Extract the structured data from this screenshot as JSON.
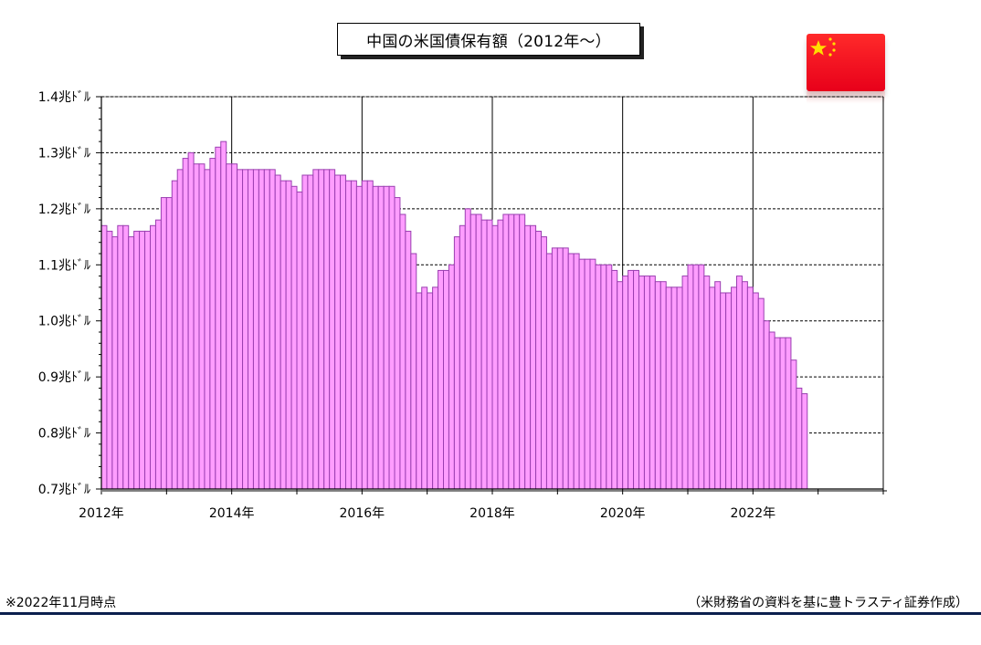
{
  "chart_data": {
    "type": "bar",
    "title": "中国の米国債保有額（2012年～）",
    "ylim": [
      0.7,
      1.4
    ],
    "yticks": [
      {
        "value": 0.7,
        "label": "0.7兆ﾄﾞﾙ"
      },
      {
        "value": 0.8,
        "label": "0.8兆ﾄﾞﾙ"
      },
      {
        "value": 0.9,
        "label": "0.9兆ﾄﾞﾙ"
      },
      {
        "value": 1.0,
        "label": "1.0兆ﾄﾞﾙ"
      },
      {
        "value": 1.1,
        "label": "1.1兆ﾄﾞﾙ"
      },
      {
        "value": 1.2,
        "label": "1.2兆ﾄﾞﾙ"
      },
      {
        "value": 1.3,
        "label": "1.3兆ﾄﾞﾙ"
      },
      {
        "value": 1.4,
        "label": "1.4兆ﾄﾞﾙ"
      }
    ],
    "x_start": "2012-01",
    "x_end": "2023-12",
    "xticks": [
      {
        "month": "2012-01",
        "label": "2012年"
      },
      {
        "month": "2014-01",
        "label": "2014年"
      },
      {
        "month": "2016-01",
        "label": "2016年"
      },
      {
        "month": "2018-01",
        "label": "2018年"
      },
      {
        "month": "2020-01",
        "label": "2020年"
      },
      {
        "month": "2022-01",
        "label": "2022年"
      }
    ],
    "grid": true,
    "series": [
      {
        "start": "2012-01",
        "values": [
          1.17,
          1.16,
          1.15,
          1.17,
          1.17,
          1.15,
          1.16,
          1.16,
          1.16,
          1.17,
          1.18,
          1.22,
          1.22,
          1.25,
          1.27,
          1.29,
          1.3,
          1.28,
          1.28,
          1.27,
          1.29,
          1.31,
          1.32,
          1.28,
          1.28,
          1.27,
          1.27,
          1.27,
          1.27,
          1.27,
          1.27,
          1.27,
          1.26,
          1.25,
          1.25,
          1.24,
          1.23,
          1.26,
          1.26,
          1.27,
          1.27,
          1.27,
          1.27,
          1.26,
          1.26,
          1.25,
          1.25,
          1.24,
          1.25,
          1.25,
          1.24,
          1.24,
          1.24,
          1.24,
          1.22,
          1.19,
          1.16,
          1.12,
          1.05,
          1.06,
          1.05,
          1.06,
          1.09,
          1.09,
          1.1,
          1.15,
          1.17,
          1.2,
          1.19,
          1.19,
          1.18,
          1.18,
          1.17,
          1.18,
          1.19,
          1.19,
          1.19,
          1.19,
          1.17,
          1.17,
          1.16,
          1.15,
          1.12,
          1.13,
          1.13,
          1.13,
          1.12,
          1.12,
          1.11,
          1.11,
          1.11,
          1.1,
          1.1,
          1.1,
          1.09,
          1.07,
          1.08,
          1.09,
          1.09,
          1.08,
          1.08,
          1.08,
          1.07,
          1.07,
          1.06,
          1.06,
          1.06,
          1.08,
          1.1,
          1.1,
          1.1,
          1.08,
          1.06,
          1.07,
          1.05,
          1.05,
          1.06,
          1.08,
          1.07,
          1.06,
          1.05,
          1.04,
          1.0,
          0.98,
          0.97,
          0.97,
          0.97,
          0.93,
          0.88,
          0.87
        ]
      }
    ],
    "colors": {
      "bar_fill": "#ff9dff",
      "bar_stroke": "#9a3fb0",
      "grid": "#000000"
    }
  },
  "footer": {
    "note": "※2022年11月時点",
    "source": "（米財務省の資料を基に豊トラスティ証券作成）"
  },
  "flag": {
    "icon": "china-flag-icon",
    "color": "#ee1c25",
    "star_color": "#ffde00"
  }
}
